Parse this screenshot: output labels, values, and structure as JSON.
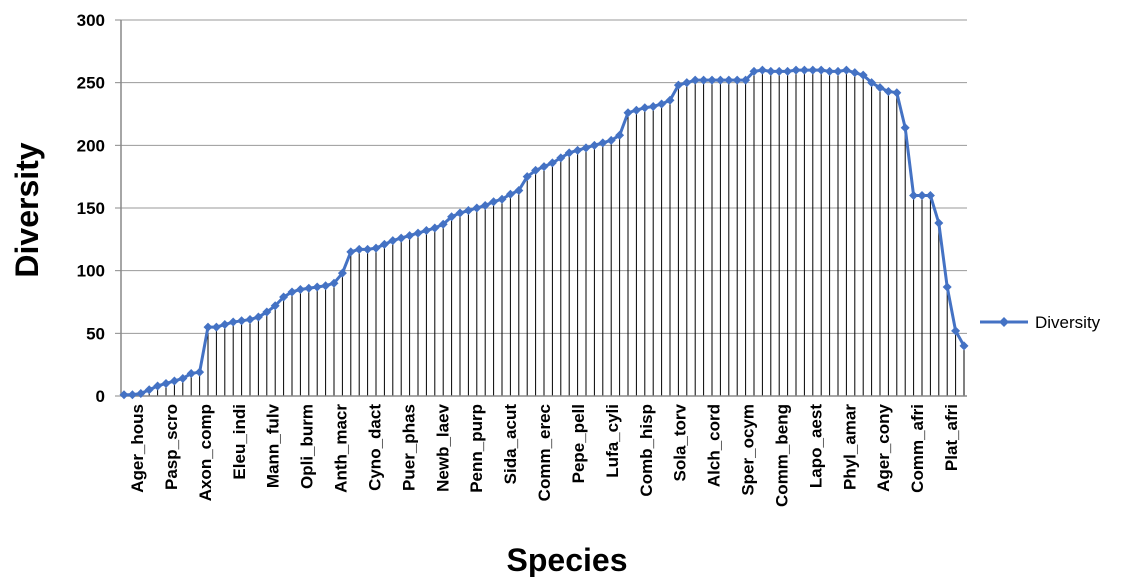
{
  "chart_data": {
    "type": "line",
    "xlabel": "Species",
    "ylabel": "Diversity",
    "ylim": [
      0,
      300
    ],
    "yticks": [
      0,
      50,
      100,
      150,
      200,
      250,
      300
    ],
    "grid": "horizontal",
    "drop_lines": true,
    "legend_position": "right",
    "series_color": "#4472C4",
    "tick_labels": [
      "Ager_hous",
      "Pasp_scro",
      "Axon_comp",
      "Eleu_indi",
      "Mann_fulv",
      "Opli_burm",
      "Anth_macr",
      "Cyno_dact",
      "Puer_phas",
      "Newb_laev",
      "Penn_purp",
      "Sida_acut",
      "Comm_erec",
      "Pepe_pell",
      "Lufa_cyli",
      "Comb_hisp",
      "Sola_torv",
      "Alch_cord",
      "Sper_ocym",
      "Comm_beng",
      "Lapo_aest",
      "Phyl_amar",
      "Ager_cony",
      "Comm_afri",
      "Plat_afri"
    ],
    "series": [
      {
        "name": "Diversity",
        "values": [
          1,
          1,
          2,
          5,
          8,
          10,
          12,
          14,
          18,
          19,
          55,
          55,
          57,
          59,
          60,
          61,
          63,
          67,
          72,
          79,
          83,
          85,
          86,
          87,
          88,
          90,
          98,
          115,
          117,
          117,
          118,
          121,
          124,
          126,
          128,
          130,
          132,
          134,
          137,
          143,
          146,
          148,
          150,
          152,
          155,
          157,
          161,
          164,
          175,
          180,
          183,
          186,
          190,
          194,
          196,
          198,
          200,
          202,
          204,
          208,
          226,
          228,
          230,
          231,
          233,
          236,
          248,
          250,
          252,
          252,
          252,
          252,
          252,
          252,
          252,
          259,
          260,
          259,
          259,
          259,
          260,
          260,
          260,
          260,
          259,
          259,
          260,
          258,
          256,
          250,
          246,
          243,
          242,
          214,
          160,
          160,
          160,
          138,
          87,
          52,
          40
        ]
      }
    ]
  }
}
